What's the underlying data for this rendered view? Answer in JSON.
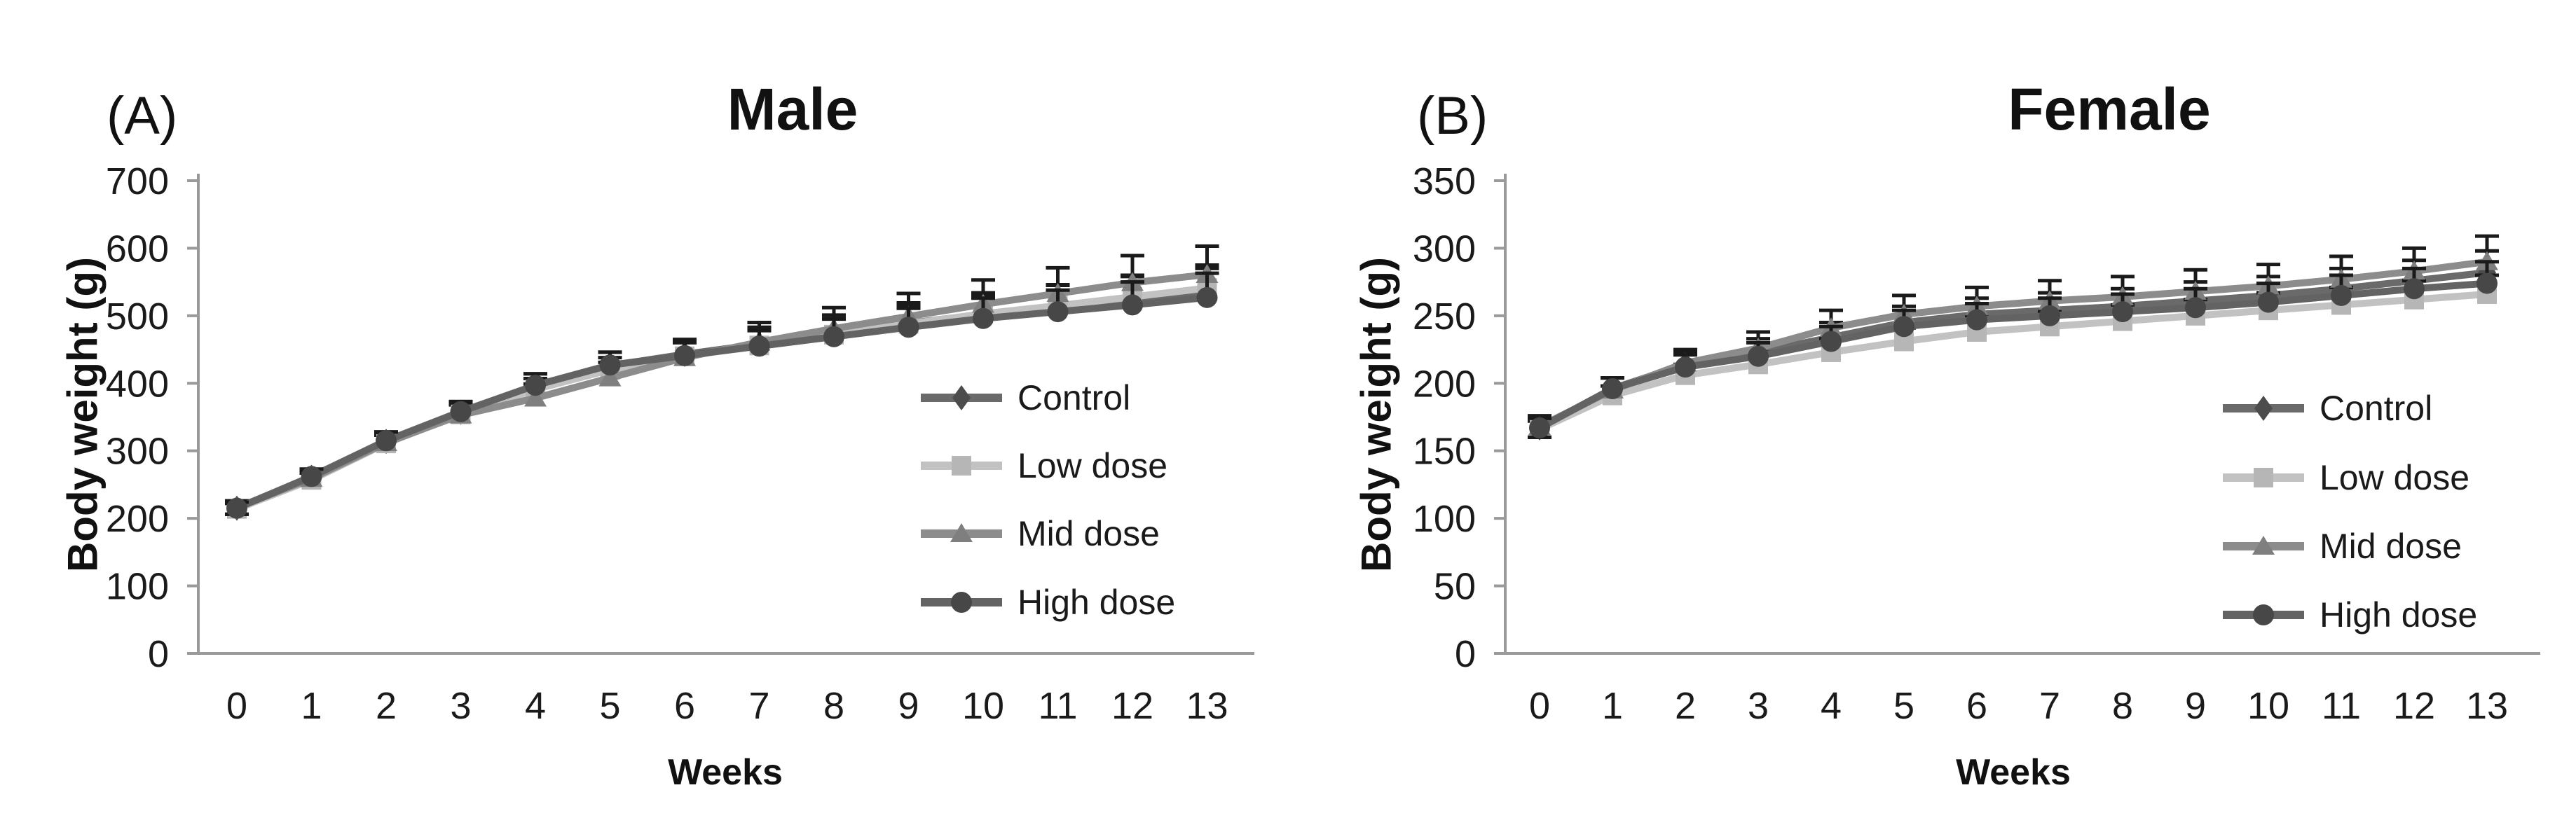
{
  "figure": {
    "background": "#ffffff",
    "description_visible_text_only": true
  },
  "colors": {
    "axis": "#9a9a9a",
    "error_bar": "#1a1a1a",
    "text": "#1a1a1a",
    "title_text": "#111111"
  },
  "chart_data": [
    {
      "type": "line",
      "panel_label": "(A)",
      "title": "Male",
      "xlabel": "Weeks",
      "ylabel": "Body weight (g)",
      "x": [
        0,
        1,
        2,
        3,
        4,
        5,
        6,
        7,
        8,
        9,
        10,
        11,
        12,
        13
      ],
      "xticks": [
        0,
        1,
        2,
        3,
        4,
        5,
        6,
        7,
        8,
        9,
        10,
        11,
        12,
        13
      ],
      "ylim": [
        0,
        700
      ],
      "yticks": [
        0,
        100,
        200,
        300,
        400,
        500,
        600,
        700
      ],
      "grid": false,
      "legend_position": "inside-lower-right",
      "error_bars": "SD whiskers upward (both directions at week 0)",
      "series": [
        {
          "name": "Control",
          "marker": "diamond",
          "color": "#6a6a6a",
          "marker_color": "#4c4c4c",
          "values": [
            215,
            261,
            314,
            357,
            396,
            426,
            443,
            458,
            474,
            489,
            502,
            512,
            522,
            532
          ],
          "sd": [
            9,
            11,
            14,
            16,
            18,
            20,
            22,
            25,
            27,
            30,
            32,
            34,
            36,
            38
          ]
        },
        {
          "name": "Low dose",
          "marker": "square",
          "color": "#c2c2c2",
          "marker_color": "#b6b6b6",
          "values": [
            214,
            257,
            311,
            354,
            391,
            420,
            440,
            456,
            472,
            488,
            503,
            515,
            528,
            541
          ],
          "sd": [
            8,
            10,
            12,
            14,
            16,
            18,
            20,
            22,
            24,
            26,
            28,
            30,
            32,
            34
          ]
        },
        {
          "name": "Mid dose",
          "marker": "triangle",
          "color": "#8c8c8c",
          "marker_color": "#7f7f7f",
          "values": [
            216,
            259,
            312,
            353,
            378,
            408,
            438,
            461,
            481,
            499,
            517,
            533,
            549,
            561
          ],
          "sd": [
            10,
            12,
            15,
            18,
            21,
            23,
            26,
            29,
            31,
            34,
            36,
            38,
            40,
            42
          ]
        },
        {
          "name": "High dose",
          "marker": "circle",
          "color": "#636363",
          "marker_color": "#474747",
          "values": [
            215,
            262,
            315,
            358,
            397,
            427,
            441,
            455,
            469,
            483,
            496,
            506,
            516,
            527
          ],
          "sd": [
            9,
            11,
            13,
            15,
            17,
            19,
            21,
            24,
            26,
            28,
            30,
            32,
            34,
            36
          ]
        }
      ]
    },
    {
      "type": "line",
      "panel_label": "(B)",
      "title": "Female",
      "xlabel": "Weeks",
      "ylabel": "Body weight (g)",
      "x": [
        0,
        1,
        2,
        3,
        4,
        5,
        6,
        7,
        8,
        9,
        10,
        11,
        12,
        13
      ],
      "xticks": [
        0,
        1,
        2,
        3,
        4,
        5,
        6,
        7,
        8,
        9,
        10,
        11,
        12,
        13
      ],
      "ylim": [
        0,
        350
      ],
      "yticks": [
        0,
        50,
        100,
        150,
        200,
        250,
        300,
        350
      ],
      "grid": false,
      "legend_position": "inside-lower-right",
      "error_bars": "SD whiskers upward (both directions at week 0)",
      "series": [
        {
          "name": "Control",
          "marker": "diamond",
          "color": "#6a6a6a",
          "marker_color": "#4c4c4c",
          "values": [
            167,
            196,
            214,
            223,
            234,
            245,
            251,
            254,
            257,
            261,
            265,
            270,
            276,
            282
          ],
          "sd": [
            7,
            8,
            9,
            10,
            11,
            12,
            12,
            13,
            13,
            14,
            14,
            15,
            15,
            16
          ]
        },
        {
          "name": "Low dose",
          "marker": "square",
          "color": "#c2c2c2",
          "marker_color": "#b6b6b6",
          "values": [
            166,
            191,
            206,
            214,
            223,
            231,
            238,
            242,
            246,
            250,
            254,
            258,
            262,
            266
          ],
          "sd": [
            6,
            7,
            8,
            9,
            10,
            10,
            11,
            11,
            12,
            12,
            13,
            13,
            14,
            14
          ]
        },
        {
          "name": "Mid dose",
          "marker": "triangle",
          "color": "#8c8c8c",
          "marker_color": "#7f7f7f",
          "values": [
            168,
            195,
            215,
            226,
            241,
            251,
            257,
            261,
            264,
            268,
            272,
            277,
            283,
            290
          ],
          "sd": [
            8,
            9,
            10,
            12,
            13,
            14,
            14,
            15,
            15,
            16,
            16,
            17,
            17,
            19
          ]
        },
        {
          "name": "High dose",
          "marker": "circle",
          "color": "#636363",
          "marker_color": "#474747",
          "values": [
            167,
            196,
            212,
            220,
            231,
            242,
            247,
            250,
            253,
            256,
            260,
            265,
            270,
            274
          ],
          "sd": [
            7,
            8,
            9,
            10,
            11,
            12,
            12,
            13,
            13,
            14,
            14,
            15,
            15,
            16
          ]
        }
      ]
    }
  ]
}
